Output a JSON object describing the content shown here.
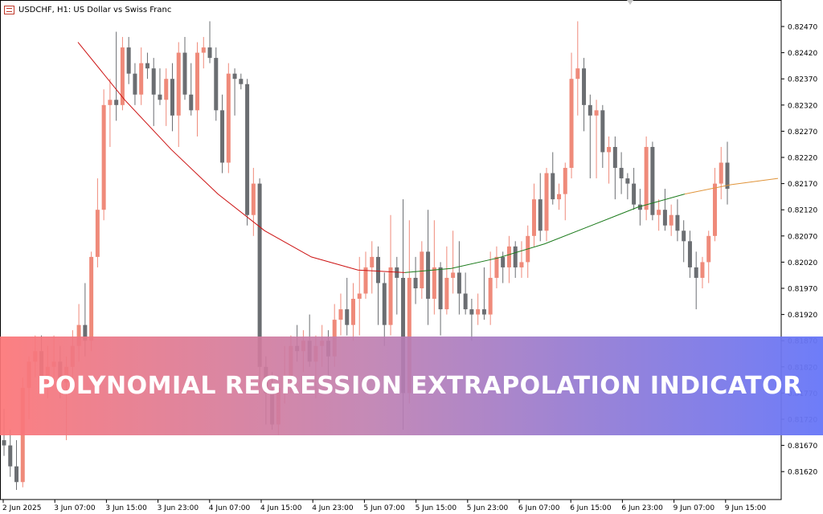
{
  "header": {
    "symbol_label": "USDCHF, H1:  US Dollar vs Swiss Franc"
  },
  "banner": {
    "title": "POLYNOMIAL REGRESSION EXTRAPOLATION INDICATOR"
  },
  "colors": {
    "bull": "#ef8a7a",
    "bear": "#6b6e72",
    "regression_past": "#cc1111",
    "regression_future": "#1a7a1a",
    "extrapolation": "#e0943a",
    "axis": "#000000"
  },
  "chart_data": {
    "type": "candlestick",
    "y_ticks": [
      "0.82470",
      "0.82420",
      "0.82370",
      "0.82320",
      "0.82270",
      "0.82220",
      "0.82170",
      "0.82120",
      "0.82070",
      "0.82020",
      "0.81970",
      "0.81920",
      "0.81870",
      "0.81820",
      "0.81770",
      "0.81720",
      "0.81670",
      "0.81620"
    ],
    "x_ticks": [
      "2 Jun 2025",
      "3 Jun 07:00",
      "3 Jun 15:00",
      "3 Jun 23:00",
      "4 Jun 07:00",
      "4 Jun 15:00",
      "4 Jun 23:00",
      "5 Jun 07:00",
      "5 Jun 15:00",
      "5 Jun 23:00",
      "6 Jun 07:00",
      "6 Jun 15:00",
      "6 Jun 23:00",
      "9 Jun 07:00",
      "9 Jun 15:00"
    ],
    "ylim": [
      0.8157,
      0.8252
    ],
    "candles": [
      {
        "o": 0.8168,
        "h": 0.8174,
        "l": 0.8165,
        "c": 0.8167
      },
      {
        "o": 0.8167,
        "h": 0.817,
        "l": 0.8161,
        "c": 0.8163
      },
      {
        "o": 0.8163,
        "h": 0.8168,
        "l": 0.81585,
        "c": 0.816
      },
      {
        "o": 0.816,
        "h": 0.818,
        "l": 0.8159,
        "c": 0.8178
      },
      {
        "o": 0.8178,
        "h": 0.8184,
        "l": 0.8172,
        "c": 0.8183
      },
      {
        "o": 0.8183,
        "h": 0.8188,
        "l": 0.818,
        "c": 0.8185
      },
      {
        "o": 0.8185,
        "h": 0.8188,
        "l": 0.8179,
        "c": 0.818
      },
      {
        "o": 0.818,
        "h": 0.8186,
        "l": 0.8176,
        "c": 0.8182
      },
      {
        "o": 0.8182,
        "h": 0.8188,
        "l": 0.818,
        "c": 0.8183
      },
      {
        "o": 0.8183,
        "h": 0.8186,
        "l": 0.8176,
        "c": 0.8179
      },
      {
        "o": 0.8179,
        "h": 0.8184,
        "l": 0.8168,
        "c": 0.8182
      },
      {
        "o": 0.8182,
        "h": 0.8189,
        "l": 0.818,
        "c": 0.8186
      },
      {
        "o": 0.8186,
        "h": 0.8194,
        "l": 0.8183,
        "c": 0.819
      },
      {
        "o": 0.819,
        "h": 0.8198,
        "l": 0.8184,
        "c": 0.8187
      },
      {
        "o": 0.8187,
        "h": 0.8204,
        "l": 0.8185,
        "c": 0.8203
      },
      {
        "o": 0.8203,
        "h": 0.8218,
        "l": 0.8201,
        "c": 0.8212
      },
      {
        "o": 0.8212,
        "h": 0.8235,
        "l": 0.821,
        "c": 0.8232
      },
      {
        "o": 0.8232,
        "h": 0.8237,
        "l": 0.8224,
        "c": 0.8233
      },
      {
        "o": 0.8233,
        "h": 0.8246,
        "l": 0.8229,
        "c": 0.8232
      },
      {
        "o": 0.8232,
        "h": 0.8245,
        "l": 0.8231,
        "c": 0.8243
      },
      {
        "o": 0.8243,
        "h": 0.8245,
        "l": 0.8236,
        "c": 0.8238
      },
      {
        "o": 0.8238,
        "h": 0.824,
        "l": 0.8232,
        "c": 0.8234
      },
      {
        "o": 0.8234,
        "h": 0.8243,
        "l": 0.8232,
        "c": 0.824
      },
      {
        "o": 0.824,
        "h": 0.8242,
        "l": 0.8237,
        "c": 0.8239
      },
      {
        "o": 0.8239,
        "h": 0.8241,
        "l": 0.8228,
        "c": 0.8234
      },
      {
        "o": 0.8234,
        "h": 0.8239,
        "l": 0.8232,
        "c": 0.8233
      },
      {
        "o": 0.8233,
        "h": 0.8239,
        "l": 0.8228,
        "c": 0.8237
      },
      {
        "o": 0.8237,
        "h": 0.824,
        "l": 0.8227,
        "c": 0.823
      },
      {
        "o": 0.823,
        "h": 0.8244,
        "l": 0.8224,
        "c": 0.8242
      },
      {
        "o": 0.8242,
        "h": 0.8245,
        "l": 0.8233,
        "c": 0.8234
      },
      {
        "o": 0.8234,
        "h": 0.824,
        "l": 0.823,
        "c": 0.8231
      },
      {
        "o": 0.8231,
        "h": 0.8244,
        "l": 0.8226,
        "c": 0.8242
      },
      {
        "o": 0.8242,
        "h": 0.8245,
        "l": 0.8239,
        "c": 0.8243
      },
      {
        "o": 0.8243,
        "h": 0.8248,
        "l": 0.824,
        "c": 0.8241
      },
      {
        "o": 0.8241,
        "h": 0.8243,
        "l": 0.8229,
        "c": 0.8231
      },
      {
        "o": 0.8231,
        "h": 0.8234,
        "l": 0.8219,
        "c": 0.8221
      },
      {
        "o": 0.8221,
        "h": 0.824,
        "l": 0.8219,
        "c": 0.8238
      },
      {
        "o": 0.8238,
        "h": 0.8239,
        "l": 0.823,
        "c": 0.8237
      },
      {
        "o": 0.8237,
        "h": 0.8238,
        "l": 0.8235,
        "c": 0.8236
      },
      {
        "o": 0.8236,
        "h": 0.8237,
        "l": 0.8209,
        "c": 0.8211
      },
      {
        "o": 0.8211,
        "h": 0.822,
        "l": 0.8207,
        "c": 0.8217
      },
      {
        "o": 0.8217,
        "h": 0.8218,
        "l": 0.8178,
        "c": 0.8182
      },
      {
        "o": 0.8182,
        "h": 0.8184,
        "l": 0.8171,
        "c": 0.8177
      },
      {
        "o": 0.8177,
        "h": 0.8181,
        "l": 0.817,
        "c": 0.8171
      },
      {
        "o": 0.8171,
        "h": 0.8179,
        "l": 0.8169,
        "c": 0.8178
      },
      {
        "o": 0.8178,
        "h": 0.8186,
        "l": 0.8175,
        "c": 0.818
      },
      {
        "o": 0.818,
        "h": 0.8188,
        "l": 0.8177,
        "c": 0.8186
      },
      {
        "o": 0.8186,
        "h": 0.819,
        "l": 0.8183,
        "c": 0.8185
      },
      {
        "o": 0.8185,
        "h": 0.8189,
        "l": 0.8181,
        "c": 0.8187
      },
      {
        "o": 0.8187,
        "h": 0.8192,
        "l": 0.8182,
        "c": 0.8183
      },
      {
        "o": 0.8183,
        "h": 0.8188,
        "l": 0.8176,
        "c": 0.8186
      },
      {
        "o": 0.8186,
        "h": 0.819,
        "l": 0.8182,
        "c": 0.8187
      },
      {
        "o": 0.8187,
        "h": 0.8189,
        "l": 0.818,
        "c": 0.8184
      },
      {
        "o": 0.8184,
        "h": 0.8194,
        "l": 0.8182,
        "c": 0.8191
      },
      {
        "o": 0.8191,
        "h": 0.8196,
        "l": 0.8188,
        "c": 0.8193
      },
      {
        "o": 0.8193,
        "h": 0.8199,
        "l": 0.8188,
        "c": 0.819
      },
      {
        "o": 0.819,
        "h": 0.8198,
        "l": 0.8187,
        "c": 0.8195
      },
      {
        "o": 0.8195,
        "h": 0.8203,
        "l": 0.8188,
        "c": 0.8196
      },
      {
        "o": 0.8196,
        "h": 0.8204,
        "l": 0.8195,
        "c": 0.8201
      },
      {
        "o": 0.8201,
        "h": 0.8206,
        "l": 0.8196,
        "c": 0.8203
      },
      {
        "o": 0.8203,
        "h": 0.8205,
        "l": 0.819,
        "c": 0.8198
      },
      {
        "o": 0.8198,
        "h": 0.82,
        "l": 0.8186,
        "c": 0.819
      },
      {
        "o": 0.819,
        "h": 0.8211,
        "l": 0.8188,
        "c": 0.8201
      },
      {
        "o": 0.8201,
        "h": 0.8203,
        "l": 0.8192,
        "c": 0.8199
      },
      {
        "o": 0.8199,
        "h": 0.8214,
        "l": 0.817,
        "c": 0.8177
      },
      {
        "o": 0.8177,
        "h": 0.821,
        "l": 0.8175,
        "c": 0.8199
      },
      {
        "o": 0.8199,
        "h": 0.8203,
        "l": 0.8194,
        "c": 0.8197
      },
      {
        "o": 0.8197,
        "h": 0.8206,
        "l": 0.8195,
        "c": 0.8204
      },
      {
        "o": 0.8204,
        "h": 0.8212,
        "l": 0.819,
        "c": 0.8195
      },
      {
        "o": 0.8195,
        "h": 0.821,
        "l": 0.8192,
        "c": 0.8201
      },
      {
        "o": 0.8201,
        "h": 0.8202,
        "l": 0.8188,
        "c": 0.8193
      },
      {
        "o": 0.8193,
        "h": 0.8205,
        "l": 0.8192,
        "c": 0.8199
      },
      {
        "o": 0.8199,
        "h": 0.8208,
        "l": 0.8196,
        "c": 0.82
      },
      {
        "o": 0.82,
        "h": 0.8206,
        "l": 0.8192,
        "c": 0.8196
      },
      {
        "o": 0.8196,
        "h": 0.82,
        "l": 0.8192,
        "c": 0.8193
      },
      {
        "o": 0.8193,
        "h": 0.8195,
        "l": 0.8187,
        "c": 0.8192
      },
      {
        "o": 0.8192,
        "h": 0.8196,
        "l": 0.819,
        "c": 0.8193
      },
      {
        "o": 0.8193,
        "h": 0.8201,
        "l": 0.8191,
        "c": 0.8192
      },
      {
        "o": 0.8192,
        "h": 0.8204,
        "l": 0.819,
        "c": 0.8199
      },
      {
        "o": 0.8199,
        "h": 0.8205,
        "l": 0.8197,
        "c": 0.8203
      },
      {
        "o": 0.8203,
        "h": 0.8204,
        "l": 0.8198,
        "c": 0.8201
      },
      {
        "o": 0.8201,
        "h": 0.8207,
        "l": 0.8198,
        "c": 0.8205
      },
      {
        "o": 0.8205,
        "h": 0.8206,
        "l": 0.8199,
        "c": 0.8201
      },
      {
        "o": 0.8201,
        "h": 0.8206,
        "l": 0.8199,
        "c": 0.8202
      },
      {
        "o": 0.8202,
        "h": 0.8209,
        "l": 0.8199,
        "c": 0.8207
      },
      {
        "o": 0.8207,
        "h": 0.8217,
        "l": 0.8205,
        "c": 0.8214
      },
      {
        "o": 0.8214,
        "h": 0.8219,
        "l": 0.8206,
        "c": 0.8208
      },
      {
        "o": 0.8208,
        "h": 0.822,
        "l": 0.8206,
        "c": 0.8219
      },
      {
        "o": 0.8219,
        "h": 0.8223,
        "l": 0.8213,
        "c": 0.8214
      },
      {
        "o": 0.8214,
        "h": 0.8217,
        "l": 0.8212,
        "c": 0.8215
      },
      {
        "o": 0.8215,
        "h": 0.8221,
        "l": 0.821,
        "c": 0.822
      },
      {
        "o": 0.822,
        "h": 0.8242,
        "l": 0.8218,
        "c": 0.8237
      },
      {
        "o": 0.8237,
        "h": 0.8248,
        "l": 0.823,
        "c": 0.8239
      },
      {
        "o": 0.8239,
        "h": 0.8241,
        "l": 0.8227,
        "c": 0.8232
      },
      {
        "o": 0.8232,
        "h": 0.8234,
        "l": 0.8218,
        "c": 0.823
      },
      {
        "o": 0.823,
        "h": 0.8233,
        "l": 0.8218,
        "c": 0.8231
      },
      {
        "o": 0.8231,
        "h": 0.8232,
        "l": 0.822,
        "c": 0.8223
      },
      {
        "o": 0.8223,
        "h": 0.8226,
        "l": 0.8217,
        "c": 0.8224
      },
      {
        "o": 0.8224,
        "h": 0.8226,
        "l": 0.8214,
        "c": 0.822
      },
      {
        "o": 0.822,
        "h": 0.8223,
        "l": 0.8215,
        "c": 0.8218
      },
      {
        "o": 0.8218,
        "h": 0.8219,
        "l": 0.8214,
        "c": 0.8217
      },
      {
        "o": 0.8217,
        "h": 0.822,
        "l": 0.8212,
        "c": 0.8213
      },
      {
        "o": 0.8213,
        "h": 0.8216,
        "l": 0.8209,
        "c": 0.8212
      },
      {
        "o": 0.8212,
        "h": 0.8226,
        "l": 0.821,
        "c": 0.8224
      },
      {
        "o": 0.8224,
        "h": 0.8225,
        "l": 0.821,
        "c": 0.8211
      },
      {
        "o": 0.8211,
        "h": 0.8214,
        "l": 0.8208,
        "c": 0.8212
      },
      {
        "o": 0.8212,
        "h": 0.8216,
        "l": 0.8208,
        "c": 0.8209
      },
      {
        "o": 0.8209,
        "h": 0.8213,
        "l": 0.8207,
        "c": 0.8211
      },
      {
        "o": 0.8211,
        "h": 0.8214,
        "l": 0.8206,
        "c": 0.8208
      },
      {
        "o": 0.8208,
        "h": 0.821,
        "l": 0.8202,
        "c": 0.8206
      },
      {
        "o": 0.8206,
        "h": 0.8208,
        "l": 0.8199,
        "c": 0.8201
      },
      {
        "o": 0.8201,
        "h": 0.8204,
        "l": 0.8193,
        "c": 0.8199
      },
      {
        "o": 0.8199,
        "h": 0.8203,
        "l": 0.8197,
        "c": 0.8202
      },
      {
        "o": 0.8202,
        "h": 0.8208,
        "l": 0.8198,
        "c": 0.8207
      },
      {
        "o": 0.8207,
        "h": 0.822,
        "l": 0.8206,
        "c": 0.8217
      },
      {
        "o": 0.8217,
        "h": 0.8224,
        "l": 0.8214,
        "c": 0.8221
      },
      {
        "o": 0.8221,
        "h": 0.8225,
        "l": 0.8213,
        "c": 0.8216
      }
    ],
    "regression_points": [
      [
        0.0,
        0.8244
      ],
      [
        0.1,
        0.8233
      ],
      [
        0.2,
        0.82235
      ],
      [
        0.3,
        0.8215
      ],
      [
        0.4,
        0.8208
      ],
      [
        0.5,
        0.8203
      ],
      [
        0.6,
        0.82005
      ],
      [
        0.7,
        0.82
      ],
      [
        0.8,
        0.82008
      ],
      [
        0.9,
        0.82028
      ],
      [
        1.0,
        0.82055
      ],
      [
        1.1,
        0.8209
      ],
      [
        1.2,
        0.82125
      ],
      [
        1.3,
        0.8215
      ],
      [
        1.4,
        0.82168
      ],
      [
        1.5,
        0.8218
      ]
    ]
  }
}
